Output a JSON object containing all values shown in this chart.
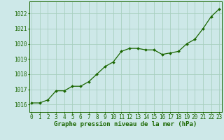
{
  "x": [
    0,
    1,
    2,
    3,
    4,
    5,
    6,
    7,
    8,
    9,
    10,
    11,
    12,
    13,
    14,
    15,
    16,
    17,
    18,
    19,
    20,
    21,
    22,
    23
  ],
  "y": [
    1016.1,
    1016.1,
    1016.3,
    1016.9,
    1016.9,
    1017.2,
    1017.2,
    1017.5,
    1018.0,
    1018.5,
    1018.8,
    1019.5,
    1019.7,
    1019.7,
    1019.6,
    1019.6,
    1019.3,
    1019.4,
    1019.5,
    1020.0,
    1020.3,
    1021.0,
    1021.8,
    1022.3
  ],
  "line_color": "#1a6600",
  "marker": "D",
  "marker_size": 2.0,
  "line_width": 0.9,
  "bg_color": "#cde8e8",
  "grid_color": "#a8cfc0",
  "xlabel": "Graphe pression niveau de la mer (hPa)",
  "xlabel_color": "#1a6600",
  "xlabel_fontsize": 6.5,
  "tick_color": "#1a6600",
  "tick_fontsize": 5.5,
  "ylim": [
    1015.5,
    1022.8
  ],
  "yticks": [
    1016,
    1017,
    1018,
    1019,
    1020,
    1021,
    1022
  ],
  "xticks": [
    0,
    1,
    2,
    3,
    4,
    5,
    6,
    7,
    8,
    9,
    10,
    11,
    12,
    13,
    14,
    15,
    16,
    17,
    18,
    19,
    20,
    21,
    22,
    23
  ],
  "xlim": [
    -0.3,
    23.3
  ]
}
